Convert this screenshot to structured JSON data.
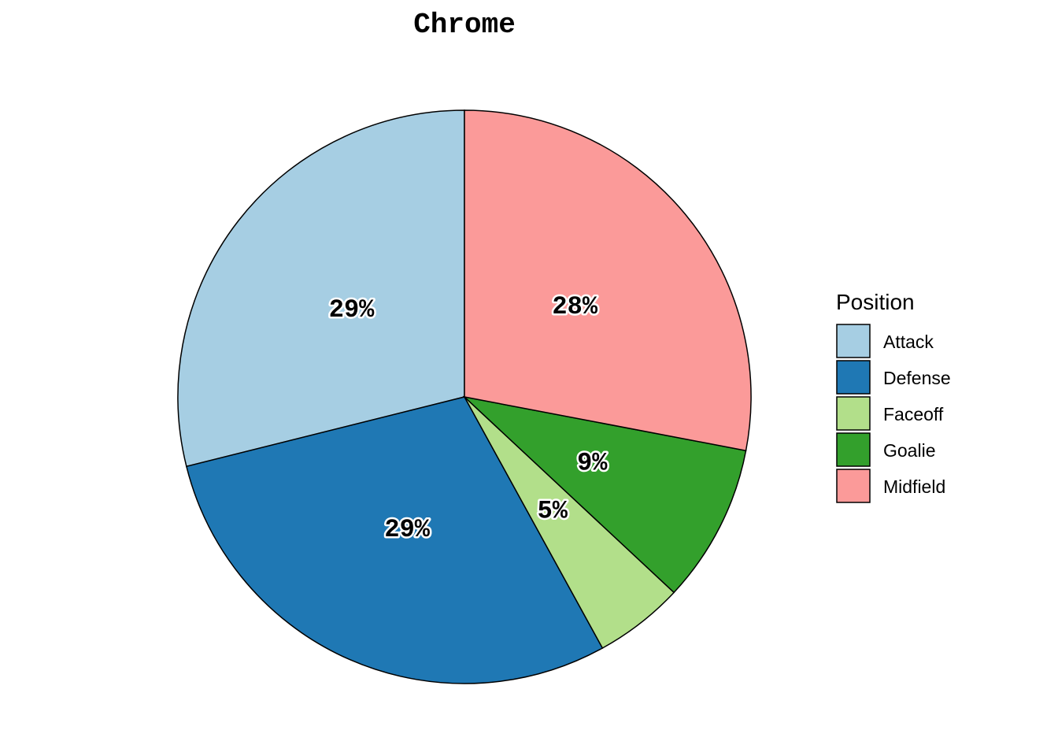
{
  "chart_data": {
    "type": "pie",
    "title": "Chrome",
    "legend_title": "Position",
    "legend_position": "right",
    "direction": "counterclockwise from top",
    "categories": [
      "Attack",
      "Defense",
      "Faceoff",
      "Goalie",
      "Midfield"
    ],
    "values": [
      28.9,
      29.1,
      5.05,
      8.95,
      28.0
    ],
    "labels": [
      "29%",
      "29%",
      "5%",
      "9%",
      "28%"
    ],
    "colors": [
      "#A6CEE3",
      "#1F78B4",
      "#B2DF8A",
      "#33A02C",
      "#FB9A99"
    ]
  }
}
